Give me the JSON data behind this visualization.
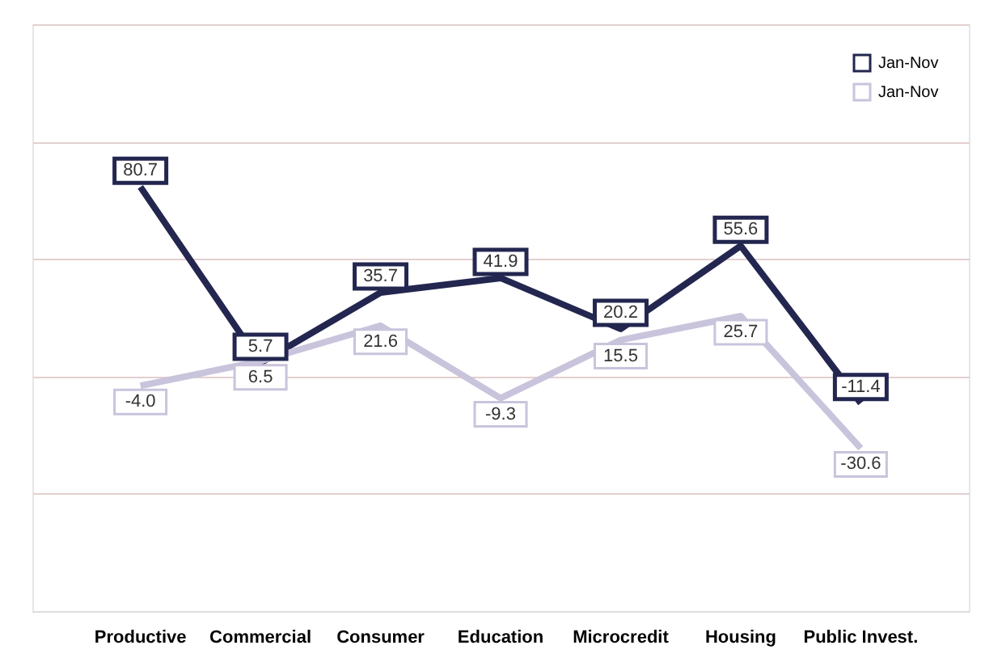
{
  "chart_data": {
    "type": "line",
    "categories": [
      "Productive",
      "Commercial",
      "Consumer",
      "Education",
      "Microcredit",
      "Housing",
      "Public Invest."
    ],
    "series": [
      {
        "name": "Jan-Nov",
        "color": "#23264f",
        "values": [
          80.7,
          5.7,
          35.7,
          41.9,
          20.2,
          55.6,
          -11.4
        ],
        "value_labels": [
          "80.7",
          "5.7",
          "35.7",
          "41.9",
          "20.2",
          "55.6",
          "-11.4"
        ]
      },
      {
        "name": "Jan-Nov",
        "color": "#c9c4dc",
        "values": [
          -4.0,
          6.5,
          21.6,
          -9.3,
          15.5,
          25.7,
          -30.6
        ],
        "value_labels": [
          "-4.0",
          "6.5",
          "21.6",
          "-9.3",
          "15.5",
          "25.7",
          "-30.6"
        ]
      }
    ],
    "ylim": [
      -100,
      150
    ],
    "yticks": [
      {
        "value": -100,
        "label": null
      },
      {
        "value": -50,
        "label": null
      },
      {
        "value": 0,
        "label": null
      },
      {
        "value": 50,
        "label": null
      },
      {
        "value": 100,
        "label": null
      },
      {
        "value": 150,
        "label": null
      }
    ],
    "tick_labels": "x",
    "grid": "y",
    "legend": "top right",
    "marker": "none",
    "line_style": "solid"
  }
}
